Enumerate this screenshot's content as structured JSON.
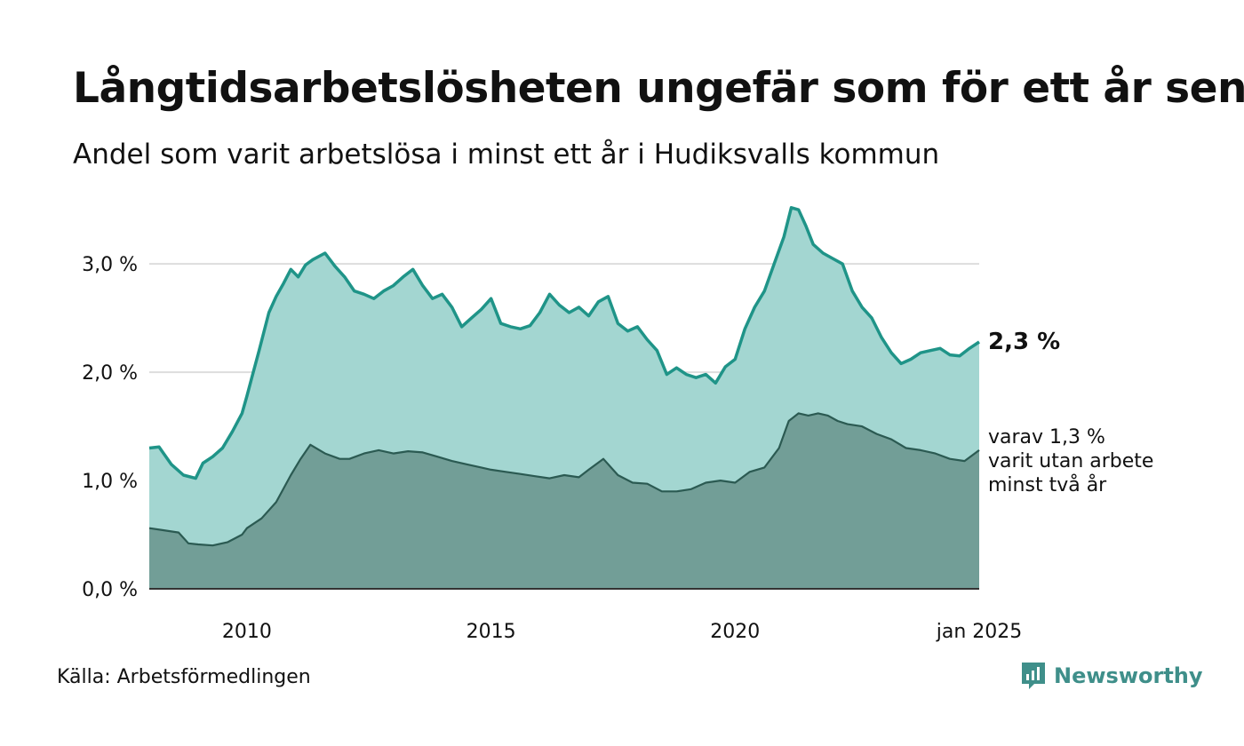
{
  "title": "Långtidsarbetslösheten ungefär som för ett år sen",
  "subtitle": "Andel som varit arbetslösa i minst ett år i Hudiksvalls kommun",
  "source": "Källa: Arbetsförmedlingen",
  "brand": "Newsworthy",
  "icons": {
    "brand_logo": "newsworthy-logo-icon"
  },
  "colors": {
    "total_line": "#1f9488",
    "total_fill": "#a3d6d1",
    "long_line": "#2b5a52",
    "long_fill": "#729e97",
    "grid": "#dddddd",
    "brand": "#3f8f8a"
  },
  "chart_data": {
    "type": "area",
    "ylim": [
      0,
      3.6
    ],
    "y_ticks": [
      {
        "value": 0,
        "label": "0,0 %"
      },
      {
        "value": 1,
        "label": "1,0 %"
      },
      {
        "value": 2,
        "label": "2,0 %"
      },
      {
        "value": 3,
        "label": "3,0 %"
      }
    ],
    "x_ticks": [
      {
        "value": 2010,
        "label": "2010"
      },
      {
        "value": 2015,
        "label": "2015"
      },
      {
        "value": 2020,
        "label": "2020"
      },
      {
        "value": 2025,
        "label": "jan 2025"
      }
    ],
    "xlim": [
      2008,
      2025
    ],
    "grid": true,
    "series": [
      {
        "x": [
          2008.0,
          2008.2,
          2008.45,
          2008.7,
          2008.95,
          2009.1,
          2009.3,
          2009.5,
          2009.7,
          2009.9,
          2010.0,
          2010.1,
          2010.25,
          2010.45,
          2010.6,
          2010.75,
          2010.9,
          2011.05,
          2011.2,
          2011.35,
          2011.6,
          2011.8,
          2012.0,
          2012.2,
          2012.4,
          2012.6,
          2012.8,
          2013.0,
          2013.2,
          2013.4,
          2013.6,
          2013.8,
          2014.0,
          2014.2,
          2014.4,
          2014.6,
          2014.8,
          2015.0,
          2015.2,
          2015.4,
          2015.6,
          2015.8,
          2016.0,
          2016.2,
          2016.4,
          2016.6,
          2016.8,
          2017.0,
          2017.2,
          2017.4,
          2017.6,
          2017.8,
          2018.0,
          2018.2,
          2018.4,
          2018.6,
          2018.8,
          2019.0,
          2019.2,
          2019.4,
          2019.6,
          2019.8,
          2020.0,
          2020.2,
          2020.4,
          2020.6,
          2020.8,
          2021.0,
          2021.15,
          2021.3,
          2021.45,
          2021.6,
          2021.8,
          2022.0,
          2022.2,
          2022.4,
          2022.6,
          2022.8,
          2023.0,
          2023.2,
          2023.4,
          2023.6,
          2023.8,
          2024.0,
          2024.2,
          2024.4,
          2024.6,
          2024.8,
          2025.0
        ],
        "values": [
          1.3,
          1.31,
          1.15,
          1.05,
          1.02,
          1.16,
          1.22,
          1.3,
          1.45,
          1.62,
          1.78,
          1.95,
          2.2,
          2.55,
          2.7,
          2.82,
          2.95,
          2.88,
          2.99,
          3.04,
          3.1,
          2.98,
          2.88,
          2.75,
          2.72,
          2.68,
          2.75,
          2.8,
          2.88,
          2.95,
          2.8,
          2.68,
          2.72,
          2.6,
          2.42,
          2.5,
          2.58,
          2.68,
          2.45,
          2.42,
          2.4,
          2.43,
          2.55,
          2.72,
          2.62,
          2.55,
          2.6,
          2.52,
          2.65,
          2.7,
          2.45,
          2.38,
          2.42,
          2.3,
          2.2,
          1.98,
          2.04,
          1.98,
          1.95,
          1.98,
          1.9,
          2.05,
          2.12,
          2.4,
          2.6,
          2.75,
          3.0,
          3.25,
          3.52,
          3.5,
          3.35,
          3.18,
          3.1,
          3.05,
          3.0,
          2.75,
          2.6,
          2.5,
          2.32,
          2.18,
          2.08,
          2.12,
          2.18,
          2.2,
          2.22,
          2.16,
          2.15,
          2.22,
          2.28
        ]
      },
      {
        "x": [
          2008.0,
          2008.3,
          2008.6,
          2008.8,
          2009.0,
          2009.3,
          2009.6,
          2009.9,
          2010.0,
          2010.3,
          2010.6,
          2010.9,
          2011.1,
          2011.3,
          2011.6,
          2011.9,
          2012.1,
          2012.4,
          2012.7,
          2013.0,
          2013.3,
          2013.6,
          2013.9,
          2014.2,
          2014.5,
          2014.8,
          2015.0,
          2015.3,
          2015.6,
          2015.9,
          2016.2,
          2016.5,
          2016.8,
          2017.0,
          2017.3,
          2017.6,
          2017.9,
          2018.2,
          2018.5,
          2018.8,
          2019.1,
          2019.4,
          2019.7,
          2020.0,
          2020.3,
          2020.6,
          2020.9,
          2021.1,
          2021.3,
          2021.5,
          2021.7,
          2021.9,
          2022.1,
          2022.3,
          2022.6,
          2022.9,
          2023.2,
          2023.5,
          2023.8,
          2024.1,
          2024.4,
          2024.7,
          2025.0
        ],
        "values": [
          0.56,
          0.54,
          0.52,
          0.42,
          0.41,
          0.4,
          0.43,
          0.5,
          0.56,
          0.65,
          0.8,
          1.05,
          1.2,
          1.33,
          1.25,
          1.2,
          1.2,
          1.25,
          1.28,
          1.25,
          1.27,
          1.26,
          1.22,
          1.18,
          1.15,
          1.12,
          1.1,
          1.08,
          1.06,
          1.04,
          1.02,
          1.05,
          1.03,
          1.1,
          1.2,
          1.05,
          0.98,
          0.97,
          0.9,
          0.9,
          0.92,
          0.98,
          1.0,
          0.98,
          1.08,
          1.12,
          1.3,
          1.55,
          1.62,
          1.6,
          1.62,
          1.6,
          1.55,
          1.52,
          1.5,
          1.43,
          1.38,
          1.3,
          1.28,
          1.25,
          1.2,
          1.18,
          1.28
        ]
      }
    ],
    "end_label_total": "2,3 %",
    "end_label_long": [
      "varav 1,3 %",
      "varit utan arbete",
      "minst två år"
    ]
  }
}
